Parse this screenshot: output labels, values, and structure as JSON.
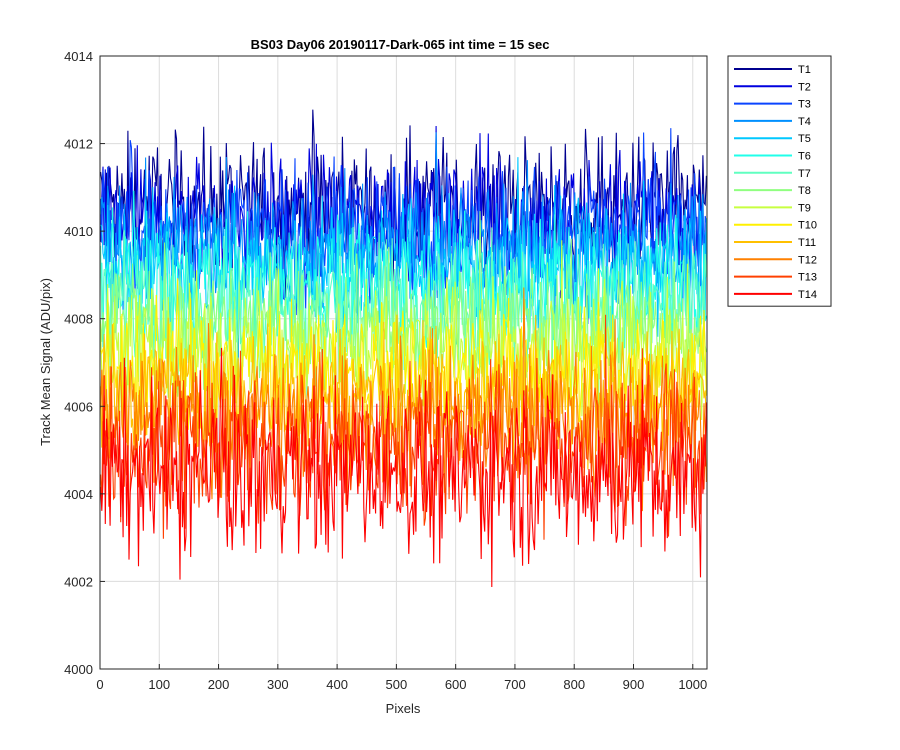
{
  "chart_data": {
    "type": "line",
    "title": "BS03 Day06 20190117-Dark-065 int time = 15 sec",
    "xlabel": "Pixels",
    "ylabel": "Track Mean Signal (ADU/pix)",
    "xlim": [
      0,
      1024
    ],
    "ylim": [
      4000,
      4014
    ],
    "xticks": [
      0,
      100,
      200,
      300,
      400,
      500,
      600,
      700,
      800,
      900,
      1000
    ],
    "yticks": [
      4000,
      4002,
      4004,
      4006,
      4008,
      4010,
      4012,
      4014
    ],
    "grid": true,
    "legend_position": "outside-top-right",
    "series": [
      {
        "name": "T1",
        "color": "#00008F",
        "mean": 4010.6,
        "noise": 0.75
      },
      {
        "name": "T2",
        "color": "#0000DF",
        "mean": 4010.3,
        "noise": 0.75
      },
      {
        "name": "T3",
        "color": "#0A45FF",
        "mean": 4010.0,
        "noise": 0.75
      },
      {
        "name": "T4",
        "color": "#0090FF",
        "mean": 4009.6,
        "noise": 0.75
      },
      {
        "name": "T5",
        "color": "#00C8FF",
        "mean": 4009.2,
        "noise": 0.75
      },
      {
        "name": "T6",
        "color": "#20FFEA",
        "mean": 4008.8,
        "noise": 0.75
      },
      {
        "name": "T7",
        "color": "#60FFC0",
        "mean": 4008.3,
        "noise": 0.75
      },
      {
        "name": "T8",
        "color": "#90FF80",
        "mean": 4007.8,
        "noise": 0.75
      },
      {
        "name": "T9",
        "color": "#C8FF40",
        "mean": 4007.3,
        "noise": 0.75
      },
      {
        "name": "T10",
        "color": "#FFF000",
        "mean": 4006.8,
        "noise": 0.75
      },
      {
        "name": "T11",
        "color": "#FFC000",
        "mean": 4006.3,
        "noise": 0.75
      },
      {
        "name": "T12",
        "color": "#FF8000",
        "mean": 4005.7,
        "noise": 0.85
      },
      {
        "name": "T13",
        "color": "#FF4000",
        "mean": 4005.1,
        "noise": 0.9
      },
      {
        "name": "T14",
        "color": "#FF0000",
        "mean": 4004.5,
        "noise": 1.0
      }
    ]
  }
}
